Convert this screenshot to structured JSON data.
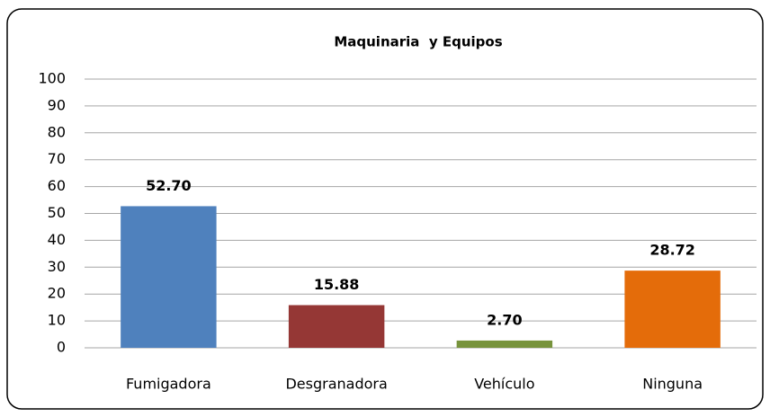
{
  "chart_data": {
    "type": "bar",
    "title": "Maquinaria  y Equipos",
    "categories": [
      "Fumigadora",
      "Desgranadora",
      "Vehículo",
      "Ninguna"
    ],
    "values": [
      52.7,
      15.88,
      2.7,
      28.72
    ],
    "value_labels": [
      "52.70",
      "15.88",
      "2.70",
      "28.72"
    ],
    "colors": [
      "#4f81bd",
      "#953735",
      "#77933c",
      "#e46c0a"
    ],
    "ylim": [
      0,
      100
    ],
    "yticks": [
      0,
      10,
      20,
      30,
      40,
      50,
      60,
      70,
      80,
      90,
      100
    ],
    "grid": true
  }
}
